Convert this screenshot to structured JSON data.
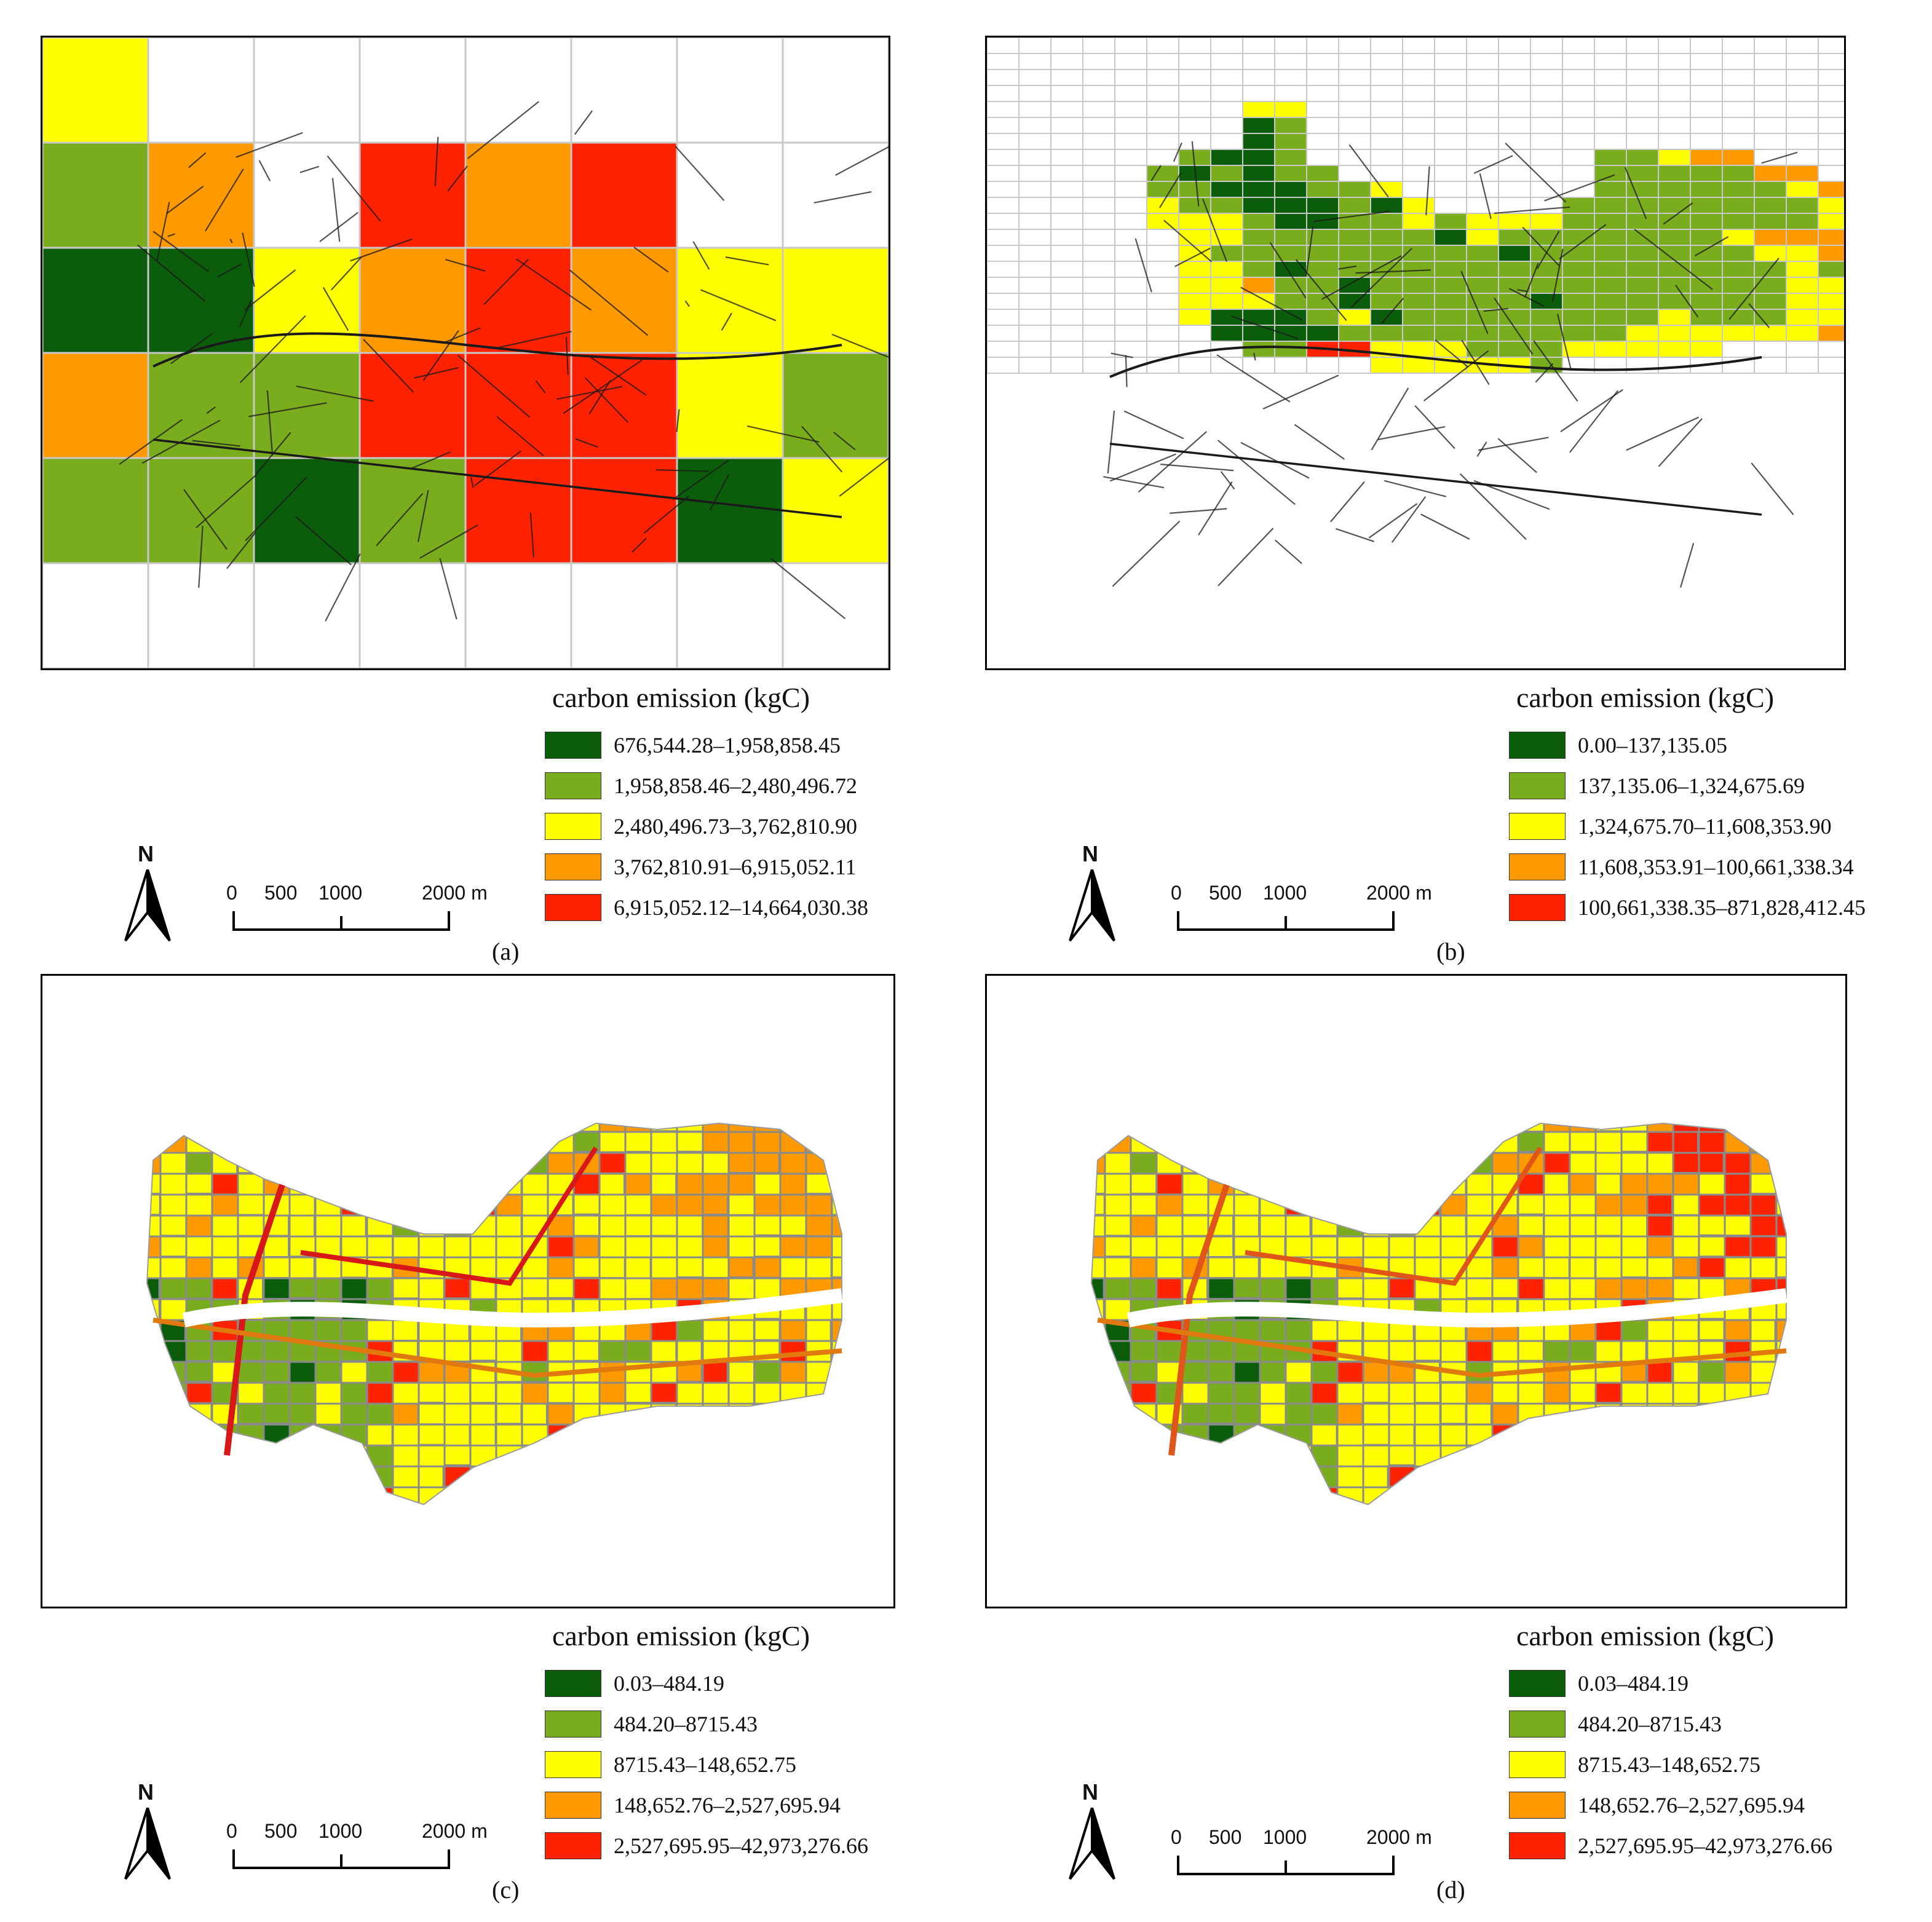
{
  "colors": {
    "class1": "#0b5c0b",
    "class2": "#7aad1e",
    "class3": "#ffff00",
    "class4": "#ff9900",
    "class5": "#ff2200",
    "gridline": "#c8c8c8",
    "road": "#8a8a8a"
  },
  "scale_labels": {
    "zero": "0",
    "five_hundred": "500",
    "thousand": "1000",
    "two_thousand": "2000 m"
  },
  "north_label": "N",
  "panels": [
    {
      "caption": "(a)",
      "map_type": "coarse-grid",
      "legend_title": "carbon emission (kgC)",
      "legend": [
        "676,544.28–1,958,858.45",
        "1,958,858.46–2,480,496.72",
        "2,480,496.73–3,762,810.90",
        "3,762,810.91–6,915,052.11",
        "6,915,052.12–14,664,030.38"
      ],
      "grid": [
        "0300000000",
        "0240545000",
        "0113454330",
        "0422555320",
        "0221255130",
        "0000000000"
      ]
    },
    {
      "caption": "(b)",
      "map_type": "fine-grid",
      "legend_title": "carbon emission (kgC)",
      "legend": [
        "0.00–137,135.05",
        "137,135.06–1,324,675.69",
        "1,324,675.70–11,608,353.90",
        "11,608,353.91–100,661,338.34",
        "100,661,338.35–871,828,412.45"
      ],
      "grid": [
        "000000000000000000000000000",
        "000000000000000000000000000",
        "000000000000000000000000000",
        "000000000000000000000000000",
        "000000003300000000000000000",
        "000000001200000000000000000",
        "000000001200000000000000000",
        "000000211200000000022344000",
        "000002121220000000022222440",
        "000002211122300000022222234000",
        "000003221112130000222222223440",
        "000003332112232333222222223440",
        "000000332222221322222223444000",
        "000000322222222212222222334000",
        "000000332122222222222222232130",
        "000000334221222222222222233330",
        "000000333221222221222222233330",
        "000000311123122222222322233350",
        "000000011112222222223333334450",
        "000000002255333222333330000000",
        "000000000000333332000000000000",
        "000000000000000000000000000000",
        "000000000000000000000000000000"
      ]
    },
    {
      "caption": "(c)",
      "map_type": "parcel",
      "legend_title": "carbon emission (kgC)",
      "legend": [
        "0.03–484.19",
        "484.20–8715.43",
        "8715.43–148,652.75",
        "148,652.76–2,527,695.94",
        "2,527,695.95–42,973,276.66"
      ]
    },
    {
      "caption": "(d)",
      "map_type": "parcel",
      "legend_title": "carbon emission (kgC)",
      "legend": [
        "0.03–484.19",
        "484.20–8715.43",
        "8715.43–148,652.75",
        "148,652.76–2,527,695.94",
        "2,527,695.95–42,973,276.66"
      ]
    }
  ]
}
